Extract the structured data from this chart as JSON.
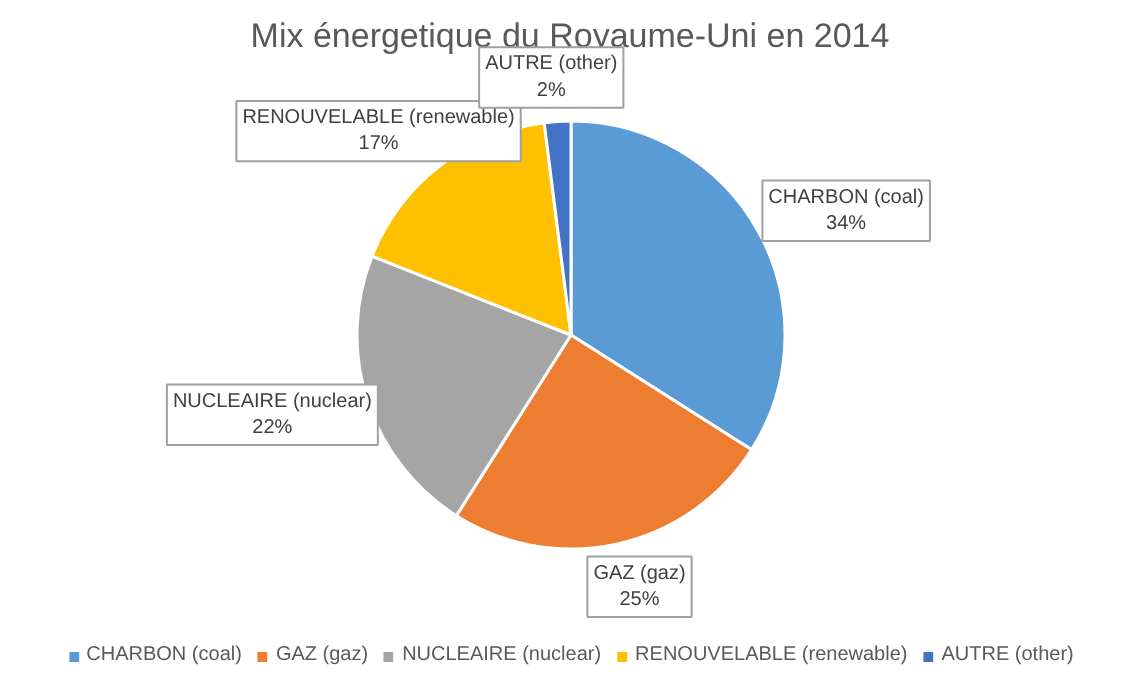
{
  "chart_data": {
    "type": "pie",
    "title": "Mix énergetique du Royaume-Uni en 2014",
    "categories": [
      "CHARBON (coal)",
      "GAZ (gaz)",
      "NUCLEAIRE (nuclear)",
      "RENOUVELABLE (renewable)",
      "AUTRE (other)"
    ],
    "values": [
      34,
      25,
      22,
      17,
      2
    ],
    "colors": [
      "#5b9bd5",
      "#ed7d31",
      "#a5a5a5",
      "#ffc000",
      "#4472c4"
    ],
    "value_labels": [
      "34%",
      "25%",
      "22%",
      "17%",
      "2%"
    ],
    "legend": "bottom"
  }
}
